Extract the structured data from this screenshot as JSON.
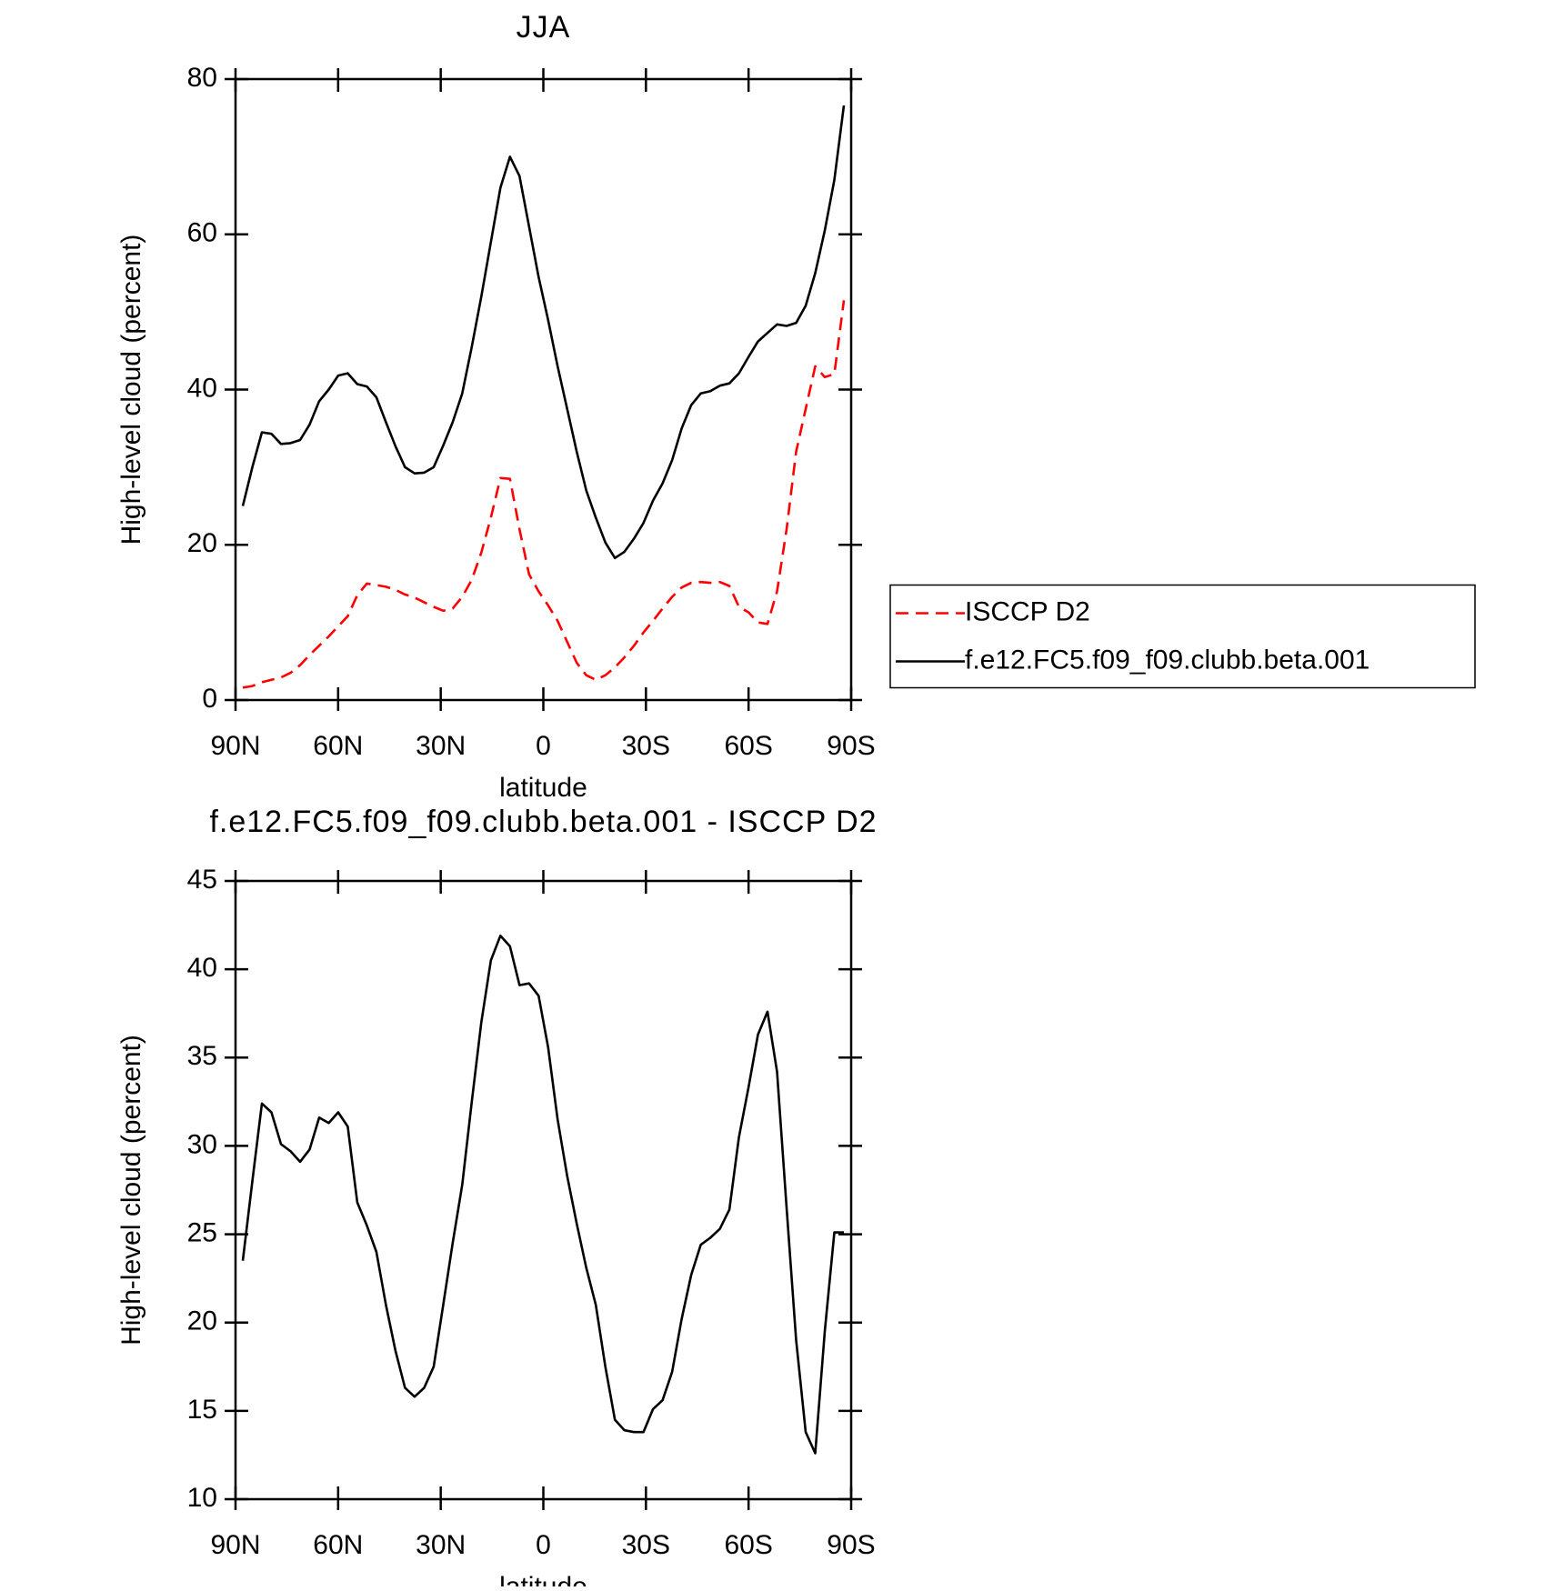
{
  "chart_data": [
    {
      "type": "line",
      "title": "JJA",
      "xlabel": "latitude",
      "ylabel": "High-level cloud (percent)",
      "x": [
        87.86,
        85.07,
        82.28,
        79.49,
        76.7,
        73.91,
        71.12,
        68.34,
        65.55,
        62.76,
        59.97,
        57.18,
        54.39,
        51.6,
        48.81,
        46.02,
        43.23,
        40.44,
        37.65,
        34.86,
        32.07,
        29.28,
        26.5,
        23.71,
        20.92,
        18.13,
        15.34,
        12.55,
        9.76,
        6.97,
        4.18,
        1.39,
        -1.39,
        -4.18,
        -6.97,
        -9.76,
        -12.55,
        -15.34,
        -18.13,
        -20.92,
        -23.71,
        -26.5,
        -29.28,
        -32.07,
        -34.86,
        -37.65,
        -40.44,
        -43.23,
        -46.02,
        -48.81,
        -51.6,
        -54.39,
        -57.18,
        -59.97,
        -62.76,
        -65.55,
        -68.34,
        -71.12,
        -73.91,
        -76.7,
        -79.49,
        -82.28,
        -85.07,
        -87.86
      ],
      "series": [
        {
          "name": "ISCCP D2",
          "color": "#ff0000",
          "linestyle": "dashed",
          "values": [
            1.6,
            1.8,
            2.3,
            2.6,
            2.9,
            3.5,
            4.5,
            5.8,
            7,
            8.2,
            9.5,
            10.8,
            13.5,
            15,
            14.8,
            14.6,
            14.2,
            13.6,
            13.2,
            12.6,
            12,
            11.5,
            11.8,
            13.3,
            15.5,
            19,
            23.5,
            28.6,
            28.5,
            22,
            16.2,
            14,
            12.2,
            10.2,
            7.5,
            4.8,
            3.2,
            2.6,
            3.2,
            4.2,
            5.5,
            7,
            8.7,
            10.2,
            11.8,
            13.3,
            14.5,
            15.1,
            15.2,
            15.1,
            15.2,
            14.7,
            12,
            11.3,
            10,
            9.8,
            14,
            22,
            32,
            37.5,
            43,
            41.6,
            42,
            51.5
          ]
        },
        {
          "name": "f.e12.FC5.f09_f09.clubb.beta.001",
          "color": "#000000",
          "linestyle": "solid",
          "values": [
            25,
            30,
            34.5,
            34.3,
            33,
            33.1,
            33.5,
            35.5,
            38.5,
            40,
            41.8,
            42.1,
            40.7,
            40.4,
            39,
            35.8,
            32.7,
            30,
            29.2,
            29.3,
            30,
            32.8,
            35.8,
            39.5,
            45.5,
            52,
            59,
            66,
            70,
            67.5,
            61,
            54.5,
            49,
            43,
            37.5,
            32,
            27,
            23.5,
            20.3,
            18.3,
            19.1,
            20.8,
            22.8,
            25.7,
            27.9,
            30.9,
            35,
            38,
            39.5,
            39.8,
            40.5,
            40.8,
            42.1,
            44.2,
            46.2,
            47.3,
            48.4,
            48.2,
            48.6,
            50.8,
            55,
            60.5,
            67,
            76.6
          ]
        }
      ],
      "xlim": [
        90,
        -90
      ],
      "xticks": [
        {
          "value": 90,
          "label": "90N"
        },
        {
          "value": 60,
          "label": "60N"
        },
        {
          "value": 30,
          "label": "30N"
        },
        0,
        {
          "value": -30,
          "label": "30S"
        },
        {
          "value": -60,
          "label": "60S"
        },
        {
          "value": -90,
          "label": "90S"
        }
      ],
      "ylim": [
        0,
        80
      ],
      "yticks": [
        0,
        20,
        40,
        60,
        80
      ],
      "legend": "right"
    },
    {
      "type": "line",
      "title": "f.e12.FC5.f09_f09.clubb.beta.001 - ISCCP D2",
      "xlabel": "latitude",
      "ylabel": "High-level cloud (percent)",
      "x": [
        87.86,
        85.07,
        82.28,
        79.49,
        76.7,
        73.91,
        71.12,
        68.34,
        65.55,
        62.76,
        59.97,
        57.18,
        54.39,
        51.6,
        48.81,
        46.02,
        43.23,
        40.44,
        37.65,
        34.86,
        32.07,
        29.28,
        26.5,
        23.71,
        20.92,
        18.13,
        15.34,
        12.55,
        9.76,
        6.97,
        4.18,
        1.39,
        -1.39,
        -4.18,
        -6.97,
        -9.76,
        -12.55,
        -15.34,
        -18.13,
        -20.92,
        -23.71,
        -26.5,
        -29.28,
        -32.07,
        -34.86,
        -37.65,
        -40.44,
        -43.23,
        -46.02,
        -48.81,
        -51.6,
        -54.39,
        -57.18,
        -59.97,
        -62.76,
        -65.55,
        -68.34,
        -71.12,
        -73.91,
        -76.7,
        -79.49,
        -82.28,
        -85.07,
        -87.86
      ],
      "series": [
        {
          "color": "#000000",
          "linestyle": "solid",
          "values": [
            23.5,
            28,
            32.4,
            31.9,
            30.1,
            29.7,
            29.1,
            29.8,
            31.6,
            31.3,
            31.9,
            31.1,
            26.8,
            25.5,
            24,
            21,
            18.4,
            16.3,
            15.8,
            16.3,
            17.5,
            21,
            24.5,
            27.8,
            32.5,
            37,
            40.5,
            41.9,
            41.3,
            39.1,
            39.2,
            38.5,
            35.6,
            31.5,
            28.3,
            25.6,
            23.1,
            21,
            17.5,
            14.5,
            13.9,
            13.8,
            13.8,
            15.1,
            15.6,
            17.2,
            20.2,
            22.7,
            24.4,
            24.8,
            25.3,
            26.4,
            30.5,
            33.3,
            36.3,
            37.6,
            34.2,
            26.5,
            19,
            13.8,
            12.6,
            19.5,
            25.1,
            25.1
          ]
        }
      ],
      "xlim": [
        90,
        -90
      ],
      "xticks": [
        {
          "value": 90,
          "label": "90N"
        },
        {
          "value": 60,
          "label": "60N"
        },
        {
          "value": 30,
          "label": "30N"
        },
        0,
        {
          "value": -30,
          "label": "30S"
        },
        {
          "value": -60,
          "label": "60S"
        },
        {
          "value": -90,
          "label": "90S"
        }
      ],
      "ylim": [
        10,
        45
      ],
      "yticks": [
        10,
        15,
        20,
        25,
        30,
        35,
        40,
        45
      ]
    }
  ]
}
